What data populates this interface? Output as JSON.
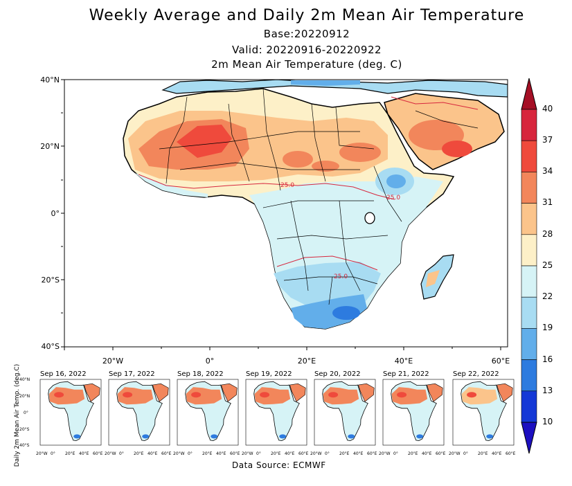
{
  "title": "Weekly Average and Daily 2m Mean Air Temperature",
  "base": "Base:20220912",
  "valid": "Valid: 20220916-20220922",
  "units_label": "2m Mean Air Temperature (deg. C)",
  "lat_labels": [
    "40°N",
    "20°N",
    "0°",
    "20°S",
    "40°S"
  ],
  "lon_labels": [
    "20°W",
    "0°",
    "20°E",
    "40°E",
    "60°E"
  ],
  "colorbar": {
    "levels": [
      "40",
      "37",
      "34",
      "31",
      "28",
      "25",
      "22",
      "19",
      "16",
      "13",
      "10"
    ],
    "colors": [
      "#a50f25",
      "#d7263d",
      "#ef4a3c",
      "#f2865b",
      "#fbc48b",
      "#fdf0c8",
      "#d6f3f6",
      "#a8dcf2",
      "#62aeea",
      "#2d7bdf",
      "#1438d6",
      "#1c0fc0"
    ]
  },
  "contour_labels": [
    "25.0",
    "25.0",
    "25.0"
  ],
  "daily_panels": [
    "Sep 16, 2022",
    "Sep 17, 2022",
    "Sep 18, 2022",
    "Sep 19, 2022",
    "Sep 20, 2022",
    "Sep 21, 2022",
    "Sep 22, 2022"
  ],
  "mini_lat_labels": [
    "40°N",
    "20°N",
    "0°",
    "20°S",
    "40°S"
  ],
  "mini_lon_labels": [
    "20°W",
    "0°",
    "20°E",
    "40°E",
    "60°E"
  ],
  "daily_axis_label": "Daily 2m Mean Air Temp. (deg.C)",
  "data_source": "Data Source: ECMWF"
}
